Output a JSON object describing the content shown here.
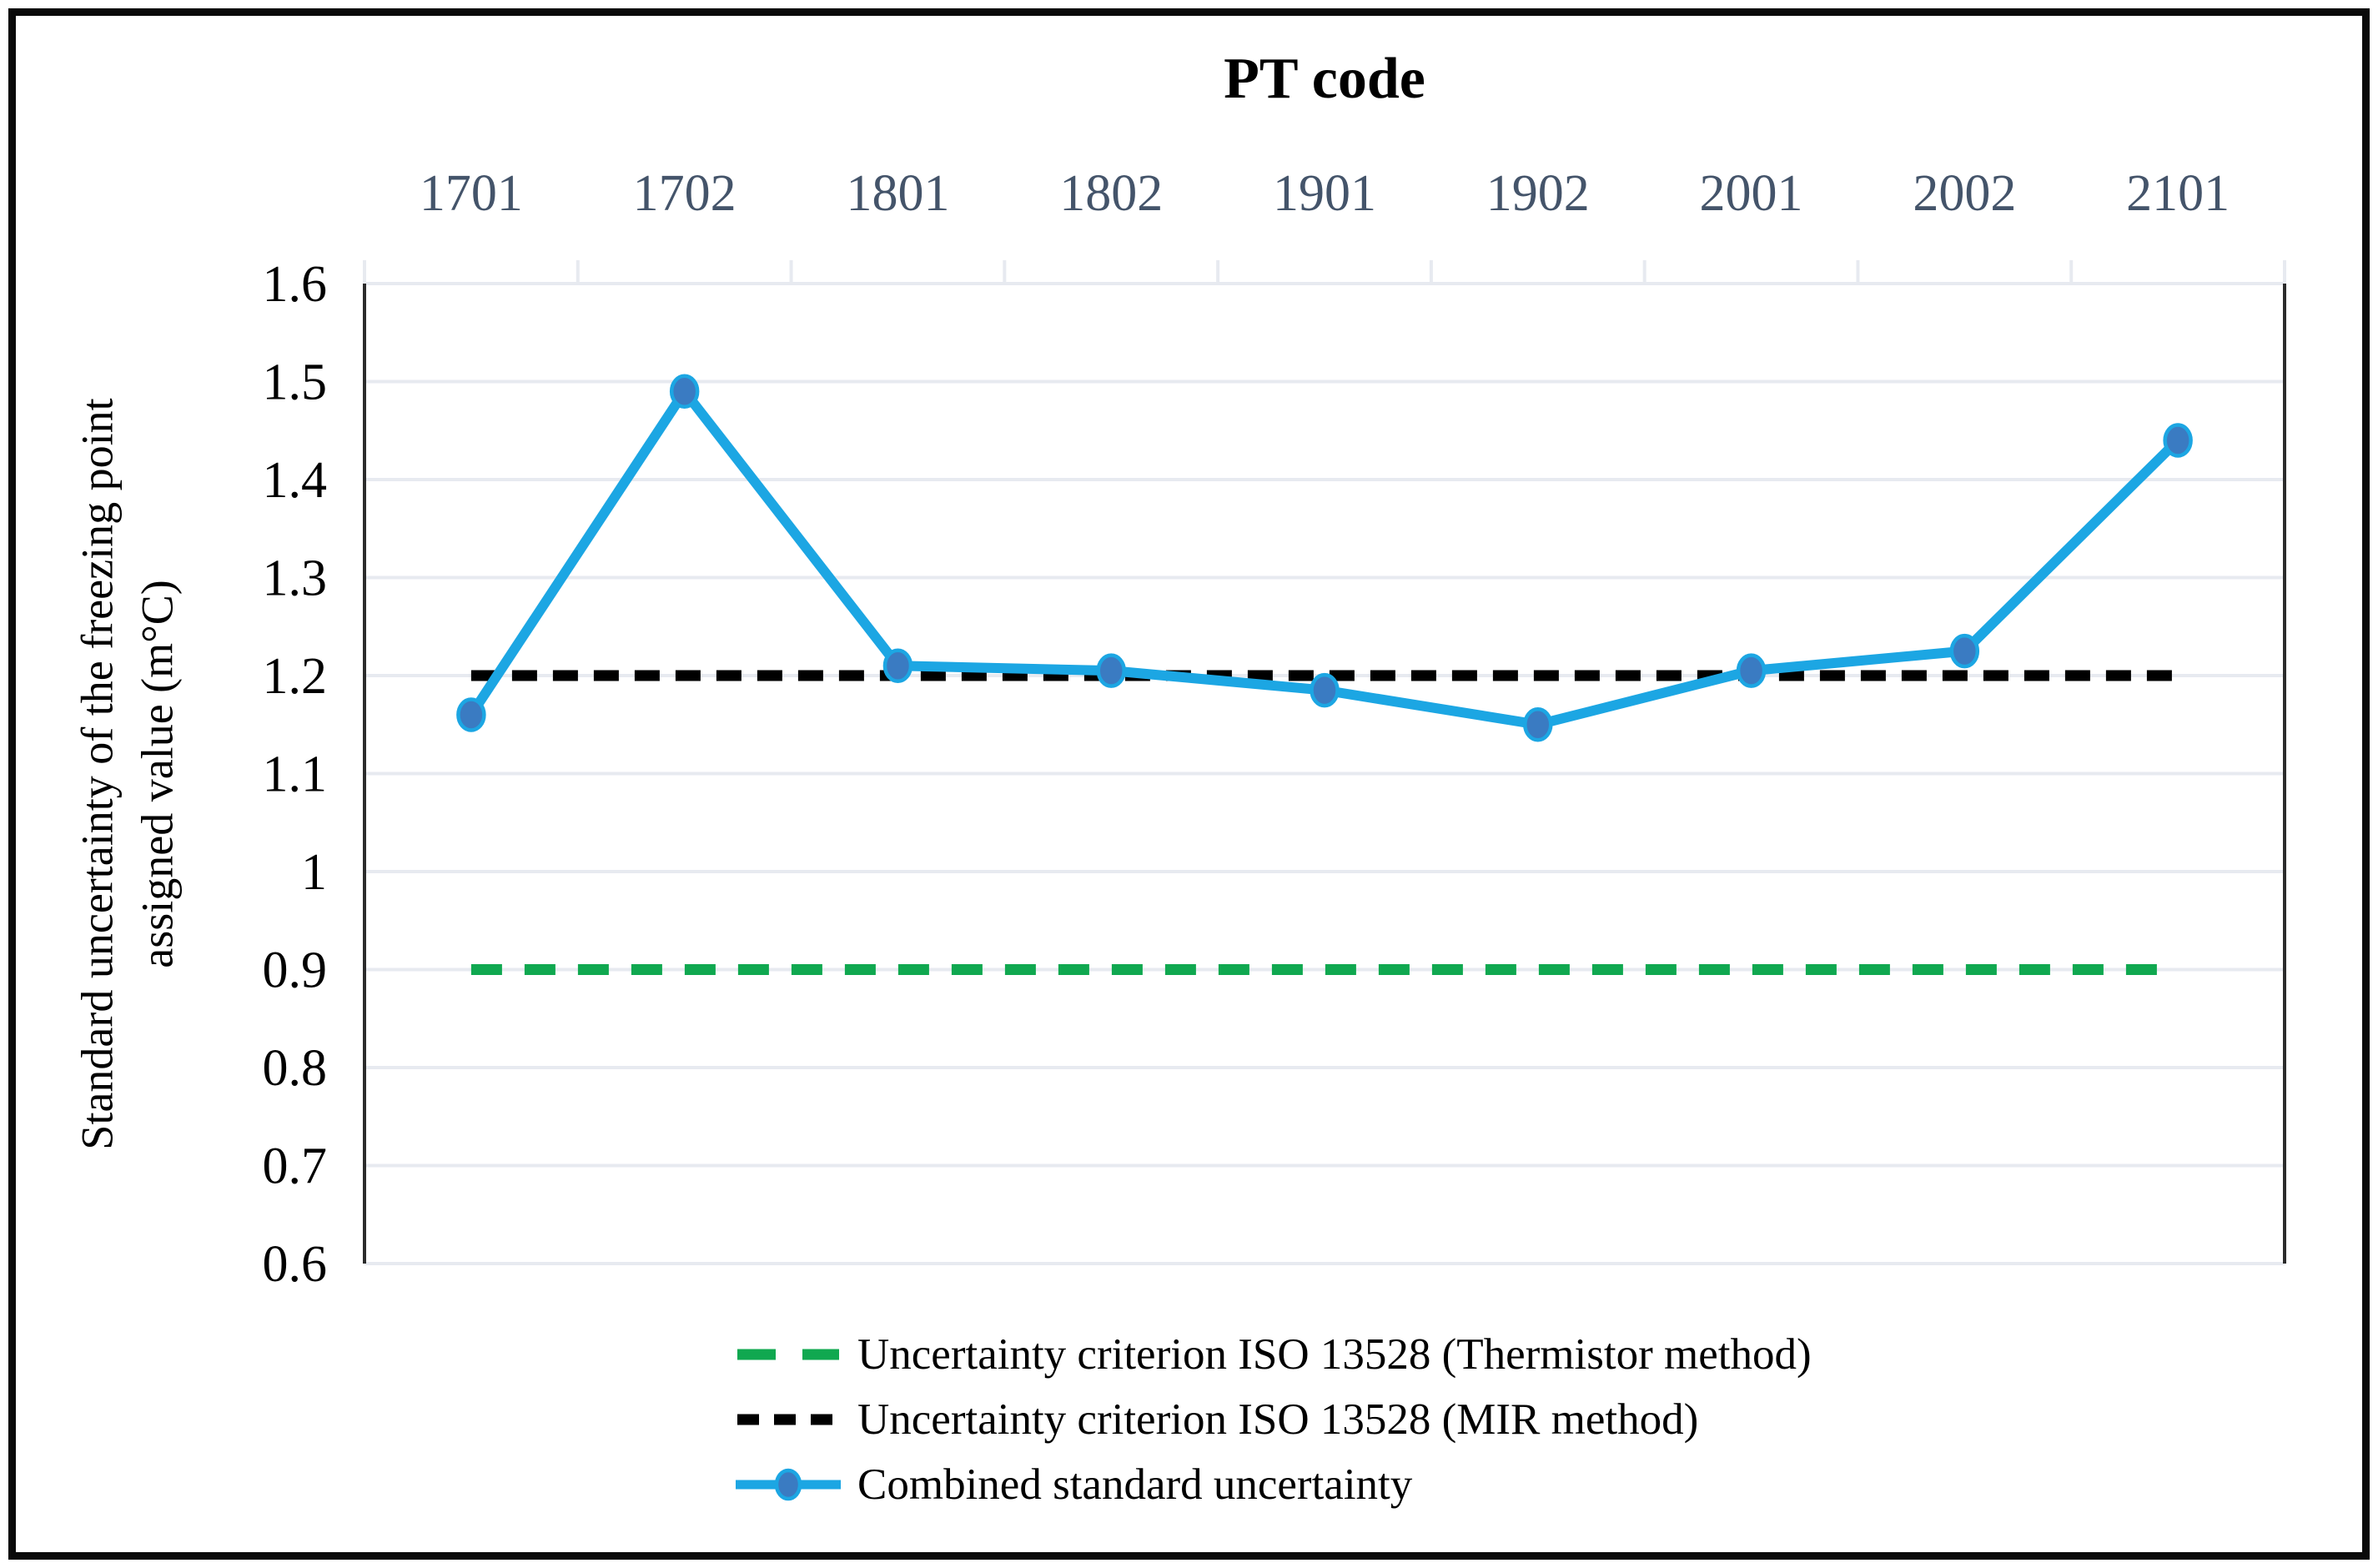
{
  "figure": {
    "background": "#ffffff",
    "border_color": "#0a0a0a"
  },
  "chart_data": {
    "type": "line",
    "title": "PT code",
    "x_axis": {
      "position": "top",
      "categories": [
        "1701",
        "1702",
        "1801",
        "1802",
        "1901",
        "1902",
        "2001",
        "2002",
        "2101"
      ],
      "tick_label_color": "#44546A"
    },
    "y_axis": {
      "label_line1": "Standard uncertainty of the freezing point",
      "label_line2": "assigned value (m°C)",
      "min": 0.6,
      "max": 1.6,
      "step": 0.1,
      "tick_labels": [
        "1.6",
        "1.5",
        "1.4",
        "1.3",
        "1.2",
        "1.1",
        "1",
        "0.9",
        "0.8",
        "0.7",
        "0.6"
      ],
      "tick_label_color": "#000000"
    },
    "grid": {
      "horizontal": true,
      "color": "#E7EAF0"
    },
    "axis_line_color": "#2b2b2b",
    "series": [
      {
        "name": "Uncertainty criterion ISO 13528 (Thermistor method)",
        "type": "dashed-constant",
        "value": 0.9,
        "color": "#10A850"
      },
      {
        "name": "Uncertainty criterion ISO 13528 (MIR method)",
        "type": "dashed-constant",
        "value": 1.2,
        "color": "#000000"
      },
      {
        "name": "Combined standard uncertainty",
        "type": "line-markers",
        "color": "#1CA6E3",
        "marker_fill": "#3A7BC2",
        "marker_stroke": "#1CA6E3",
        "values": [
          1.16,
          1.49,
          1.21,
          1.205,
          1.185,
          1.15,
          1.205,
          1.225,
          1.44
        ]
      }
    ],
    "legend": [
      {
        "label": "Uncertainty criterion ISO 13528 (Thermistor method)",
        "swatch": "green-dashed",
        "color": "#10A850"
      },
      {
        "label": "Uncertainty criterion ISO 13528 (MIR method)",
        "swatch": "black-dashed",
        "color": "#000000"
      },
      {
        "label": "Combined standard uncertainty",
        "swatch": "blue-line-marker",
        "color": "#1CA6E3",
        "marker_fill": "#3A7BC2"
      }
    ]
  }
}
